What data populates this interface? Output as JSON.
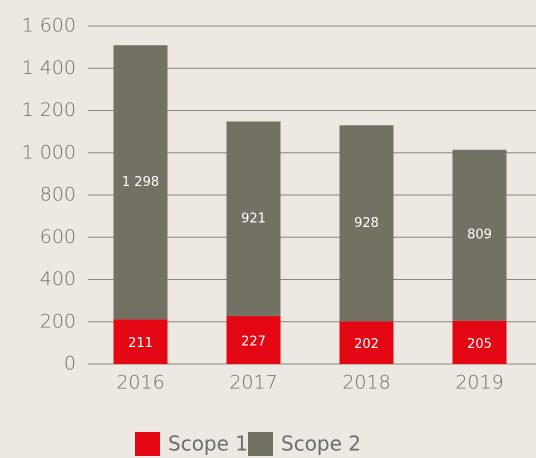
{
  "chart_data": {
    "type": "stacked_bar",
    "categories": [
      "2016",
      "2017",
      "2018",
      "2019"
    ],
    "series": [
      {
        "name": "Scope 1",
        "color": "#e30613",
        "values": [
          211,
          227,
          202,
          205
        ]
      },
      {
        "name": "Scope 2",
        "color": "#737064",
        "values": [
          1298,
          921,
          928,
          809
        ],
        "value_labels": [
          "1 298",
          "921",
          "928",
          "809"
        ]
      }
    ],
    "ylim": [
      0,
      1600
    ],
    "yticks": [
      0,
      200,
      400,
      600,
      800,
      {
        "value": 1000,
        "label": "1 000"
      },
      {
        "value": 1200,
        "label": "1 200"
      },
      {
        "value": 1400,
        "label": "1 400"
      },
      {
        "value": 1600,
        "label": "1 600"
      }
    ],
    "grid": true,
    "legend": "bottom"
  }
}
